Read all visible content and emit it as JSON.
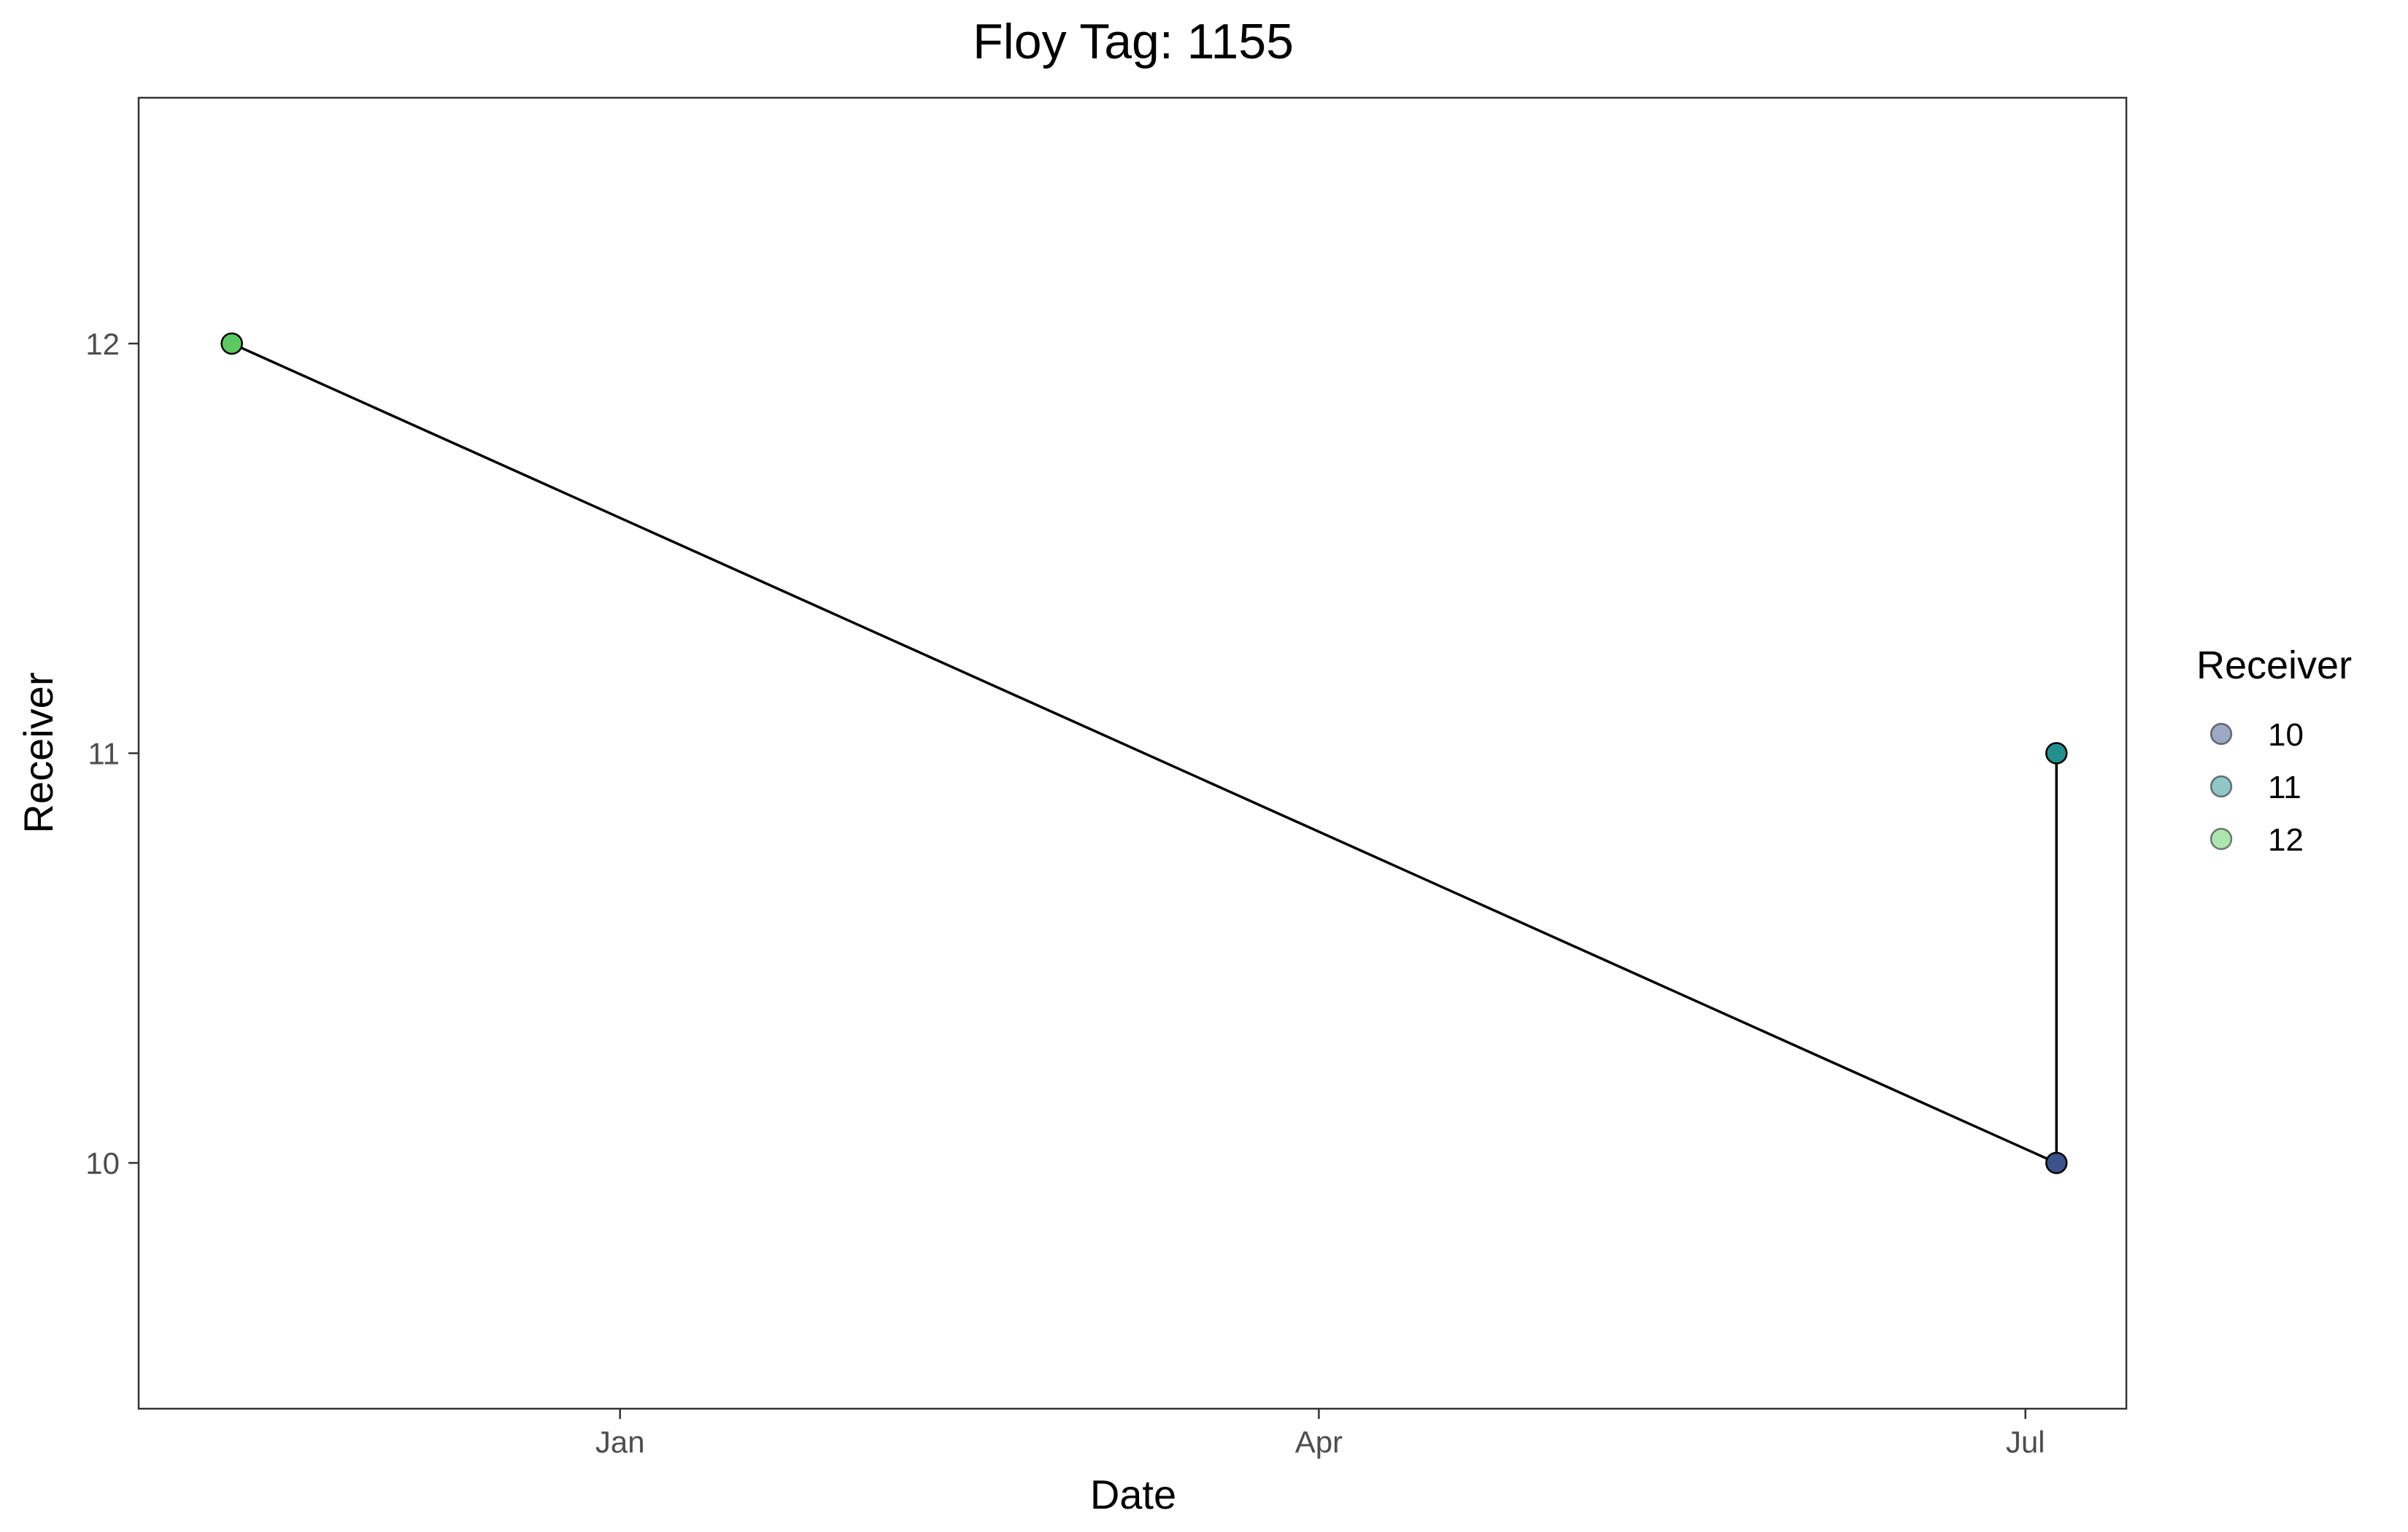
{
  "chart_data": {
    "type": "line",
    "title": "Floy Tag: 1155",
    "xlabel": "Date",
    "ylabel": "Receiver",
    "x_axis_kind": "date",
    "xlim": [
      "2020-10-31",
      "2021-07-14"
    ],
    "ylim": [
      9.4,
      12.6
    ],
    "x_ticks": [
      {
        "date": "2021-01-01",
        "label": "Jan"
      },
      {
        "date": "2021-04-01",
        "label": "Apr"
      },
      {
        "date": "2021-07-01",
        "label": "Jul"
      }
    ],
    "y_ticks": [
      {
        "value": 10,
        "label": "10"
      },
      {
        "value": 11,
        "label": "11"
      },
      {
        "value": 12,
        "label": "12"
      }
    ],
    "grid": false,
    "legend": {
      "title": "Receiver",
      "position": "right",
      "entries": [
        {
          "label": "10",
          "color": "#3b528b"
        },
        {
          "label": "11",
          "color": "#21908c"
        },
        {
          "label": "12",
          "color": "#5ec962"
        }
      ]
    },
    "series": [
      {
        "line_color": "#000000",
        "points": [
          {
            "x": "2020-11-12",
            "y": 12,
            "receiver": "12",
            "color": "#5ec962"
          },
          {
            "x": "2021-07-05",
            "y": 10,
            "receiver": "10",
            "color": "#3b528b"
          },
          {
            "x": "2021-07-05",
            "y": 11,
            "receiver": "11",
            "color": "#21908c"
          },
          {
            "x": "2021-07-05",
            "y": 10,
            "receiver": "10",
            "color": "#3b528b"
          },
          {
            "x": "2021-07-05",
            "y": 11,
            "receiver": "11",
            "color": "#21908c"
          }
        ]
      }
    ]
  }
}
